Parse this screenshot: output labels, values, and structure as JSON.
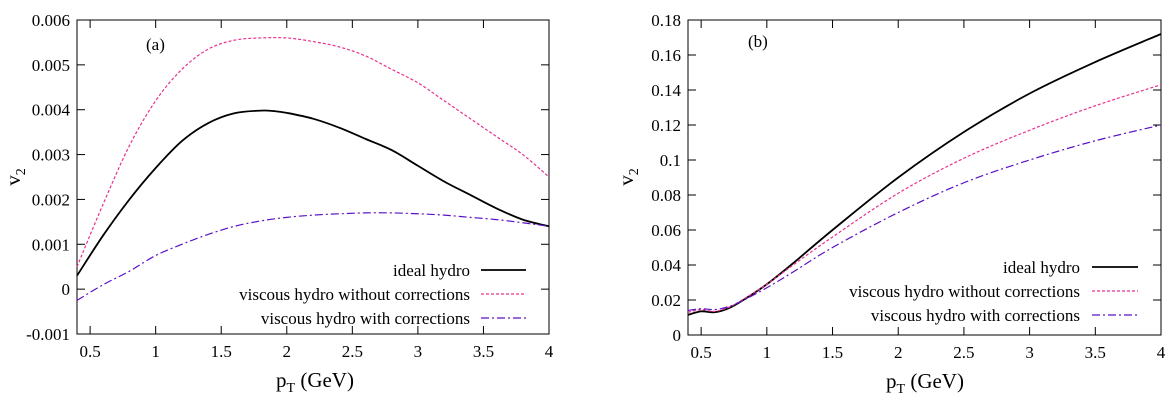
{
  "colors": {
    "ideal": "#000000",
    "without": "#e8308f",
    "with": "#5a10c8"
  },
  "chart_data": [
    {
      "type": "line",
      "panel_label": "(a)",
      "xlabel_main": "p",
      "xlabel_sub": "T",
      "xlabel_unit": " (GeV)",
      "ylabel_main": "v",
      "ylabel_sub": "2",
      "xlim": [
        0.4,
        4.0
      ],
      "ylim": [
        -0.001,
        0.006
      ],
      "xticks": [
        "0.5",
        "1",
        "1.5",
        "2",
        "2.5",
        "3",
        "3.5",
        "4"
      ],
      "yticks": [
        "-0.001",
        "0",
        "0.001",
        "0.002",
        "0.003",
        "0.004",
        "0.005",
        "0.006"
      ],
      "legend_position": "bottom-right",
      "series": [
        {
          "name": "ideal hydro",
          "style": "solid",
          "x": [
            0.4,
            0.6,
            0.8,
            1.0,
            1.2,
            1.4,
            1.6,
            1.8,
            1.9,
            2.0,
            2.2,
            2.4,
            2.6,
            2.8,
            3.0,
            3.2,
            3.4,
            3.6,
            3.8,
            4.0
          ],
          "y": [
            0.0003,
            0.0012,
            0.002,
            0.0027,
            0.0033,
            0.0037,
            0.00392,
            0.00398,
            0.00397,
            0.00393,
            0.0038,
            0.0036,
            0.00335,
            0.0031,
            0.00275,
            0.0024,
            0.0021,
            0.0018,
            0.00155,
            0.0014
          ]
        },
        {
          "name": "viscous hydro without corrections",
          "style": "dashed",
          "x": [
            0.4,
            0.6,
            0.8,
            1.0,
            1.2,
            1.4,
            1.6,
            1.8,
            2.0,
            2.2,
            2.4,
            2.6,
            2.8,
            3.0,
            3.2,
            3.4,
            3.6,
            3.8,
            4.0
          ],
          "y": [
            0.0005,
            0.0019,
            0.0032,
            0.0042,
            0.0049,
            0.00535,
            0.00555,
            0.0056,
            0.0056,
            0.00552,
            0.0054,
            0.0052,
            0.0049,
            0.0046,
            0.0042,
            0.0038,
            0.0034,
            0.003,
            0.0025
          ]
        },
        {
          "name": "viscous hydro with corrections",
          "style": "dashdot",
          "x": [
            0.4,
            0.6,
            0.8,
            1.0,
            1.2,
            1.4,
            1.6,
            1.8,
            2.0,
            2.2,
            2.4,
            2.6,
            2.8,
            3.0,
            3.2,
            3.4,
            3.6,
            3.8,
            4.0
          ],
          "y": [
            -0.00025,
            0.0001,
            0.0004,
            0.00075,
            0.001,
            0.00122,
            0.0014,
            0.00152,
            0.0016,
            0.00165,
            0.00168,
            0.0017,
            0.0017,
            0.00168,
            0.00165,
            0.0016,
            0.00155,
            0.00148,
            0.0014
          ]
        }
      ]
    },
    {
      "type": "line",
      "panel_label": "(b)",
      "xlabel_main": "p",
      "xlabel_sub": "T",
      "xlabel_unit": " (GeV)",
      "ylabel_main": "v",
      "ylabel_sub": "2",
      "xlim": [
        0.4,
        4.0
      ],
      "ylim": [
        0,
        0.18
      ],
      "xticks": [
        "0.5",
        "1",
        "1.5",
        "2",
        "2.5",
        "3",
        "3.5",
        "4"
      ],
      "yticks": [
        "0",
        "0.02",
        "0.04",
        "0.06",
        "0.08",
        "0.1",
        "0.12",
        "0.14",
        "0.16",
        "0.18"
      ],
      "legend_position": "bottom-right",
      "series": [
        {
          "name": "ideal hydro",
          "style": "solid",
          "x": [
            0.4,
            0.5,
            0.6,
            0.7,
            0.8,
            1.0,
            1.2,
            1.5,
            2.0,
            2.5,
            3.0,
            3.5,
            4.0
          ],
          "y": [
            0.0115,
            0.0135,
            0.013,
            0.015,
            0.019,
            0.029,
            0.041,
            0.06,
            0.09,
            0.116,
            0.138,
            0.156,
            0.172
          ]
        },
        {
          "name": "viscous hydro without corrections",
          "style": "dashed",
          "x": [
            0.4,
            0.5,
            0.6,
            0.7,
            0.8,
            1.0,
            1.2,
            1.5,
            2.0,
            2.5,
            3.0,
            3.5,
            4.0
          ],
          "y": [
            0.013,
            0.0145,
            0.0135,
            0.0155,
            0.0195,
            0.029,
            0.04,
            0.056,
            0.081,
            0.101,
            0.117,
            0.131,
            0.143
          ]
        },
        {
          "name": "viscous hydro with corrections",
          "style": "dashdot",
          "x": [
            0.4,
            0.5,
            0.6,
            0.7,
            0.8,
            1.0,
            1.2,
            1.5,
            2.0,
            2.5,
            3.0,
            3.5,
            4.0
          ],
          "y": [
            0.014,
            0.015,
            0.0145,
            0.016,
            0.019,
            0.027,
            0.036,
            0.05,
            0.07,
            0.087,
            0.1,
            0.111,
            0.12
          ]
        }
      ]
    }
  ]
}
